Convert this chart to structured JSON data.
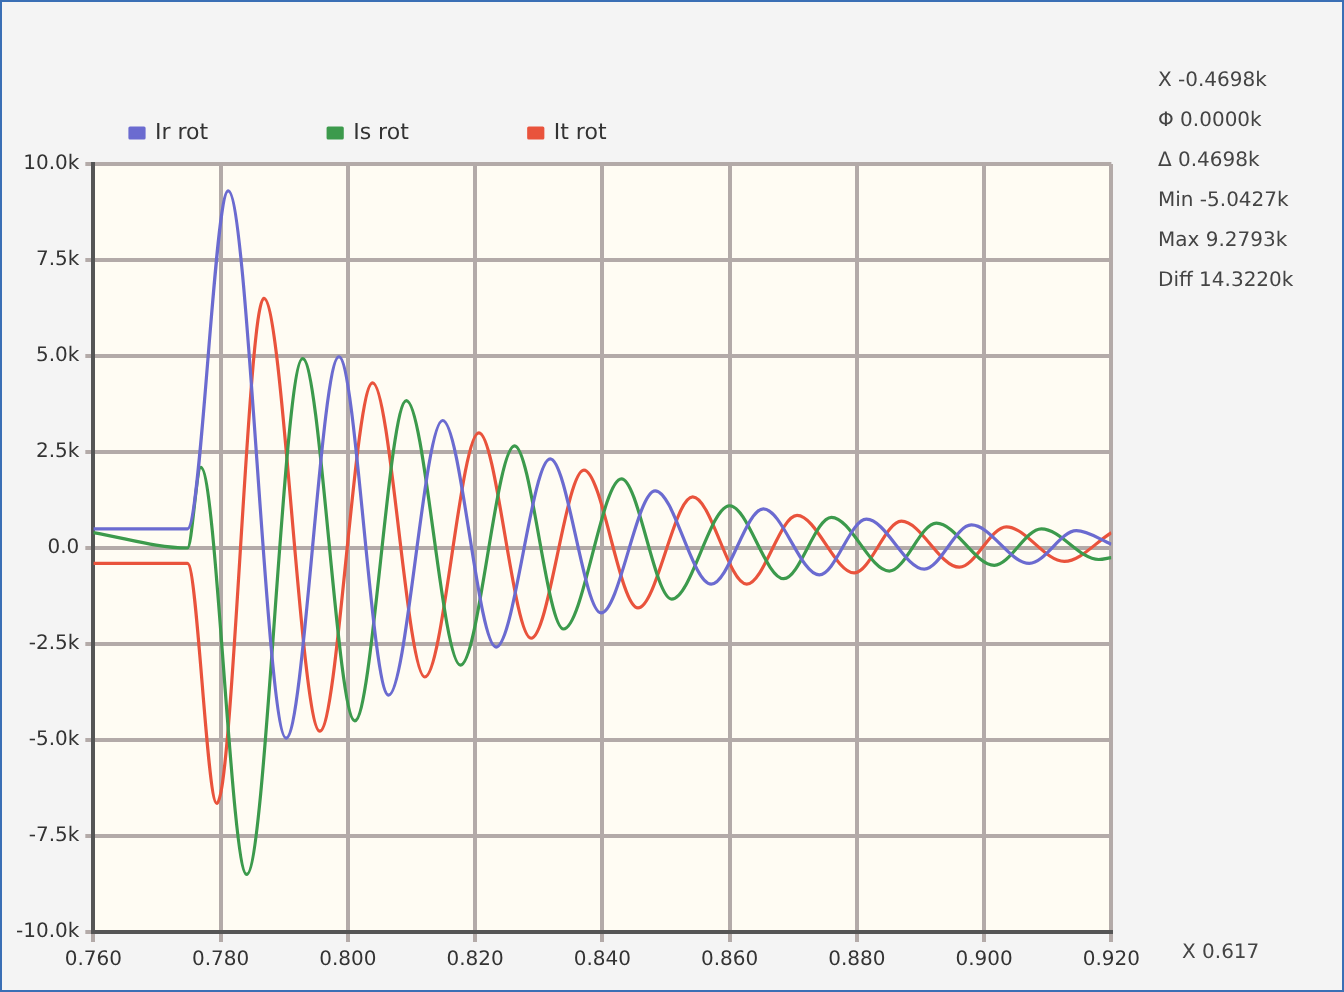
{
  "chart_data": {
    "type": "line",
    "legend": "top",
    "grid": true,
    "marker": "none",
    "line_style": "solid",
    "xlim": [
      0.76,
      0.92
    ],
    "ylim": [
      -10000,
      10000
    ],
    "xticks": [
      {
        "value": 0.76,
        "label": "0.760"
      },
      {
        "value": 0.78,
        "label": "0.780"
      },
      {
        "value": 0.8,
        "label": "0.800"
      },
      {
        "value": 0.82,
        "label": "0.820"
      },
      {
        "value": 0.84,
        "label": "0.840"
      },
      {
        "value": 0.86,
        "label": "0.860"
      },
      {
        "value": 0.88,
        "label": "0.880"
      },
      {
        "value": 0.9,
        "label": "0.900"
      },
      {
        "value": 0.92,
        "label": "0.920"
      }
    ],
    "yticks": [
      {
        "value": -10000,
        "label": "-10.0k"
      },
      {
        "value": -7500,
        "label": "-7.5k"
      },
      {
        "value": -5000,
        "label": "-5.0k"
      },
      {
        "value": -2500,
        "label": "-2.5k"
      },
      {
        "value": 0,
        "label": "0.0"
      },
      {
        "value": 2500,
        "label": "2.5k"
      },
      {
        "value": 5000,
        "label": "5.0k"
      },
      {
        "value": 7500,
        "label": "7.5k"
      },
      {
        "value": 10000,
        "label": "10.0k"
      }
    ],
    "series": [
      {
        "name": "Ir rot",
        "color": "#6b6bd0",
        "x": [
          0.76,
          0.7748,
          0.7812,
          0.7903,
          0.7986,
          0.8064,
          0.8149,
          0.8233,
          0.8318,
          0.8398,
          0.8483,
          0.8571,
          0.8653,
          0.8741,
          0.8815,
          0.8906,
          0.898,
          0.9071,
          0.9145,
          0.92
        ],
        "values": [
          500,
          500,
          9300,
          -4950,
          4980,
          -3830,
          3320,
          -2580,
          2320,
          -1690,
          1490,
          -940,
          1020,
          -700,
          750,
          -550,
          600,
          -400,
          450,
          100
        ]
      },
      {
        "name": "Is rot",
        "color": "#3c9a4c",
        "x": [
          0.76,
          0.7748,
          0.7769,
          0.7841,
          0.7929,
          0.8011,
          0.8092,
          0.8177,
          0.8262,
          0.8339,
          0.843,
          0.8509,
          0.86,
          0.8685,
          0.876,
          0.8851,
          0.8925,
          0.9016,
          0.909,
          0.918,
          0.92
        ],
        "values": [
          400,
          0,
          2100,
          -8500,
          4930,
          -4500,
          3840,
          -3050,
          2660,
          -2110,
          1800,
          -1330,
          1100,
          -800,
          800,
          -600,
          650,
          -450,
          500,
          -300,
          -250
        ]
      },
      {
        "name": "It rot",
        "color": "#e9533c",
        "x": [
          0.76,
          0.7748,
          0.7794,
          0.7868,
          0.7956,
          0.8039,
          0.8121,
          0.8206,
          0.8288,
          0.8371,
          0.8456,
          0.8542,
          0.8627,
          0.8706,
          0.8796,
          0.887,
          0.8961,
          0.9035,
          0.9126,
          0.92
        ],
        "values": [
          -400,
          -400,
          -6650,
          6500,
          -4770,
          4300,
          -3360,
          3000,
          -2350,
          2030,
          -1560,
          1330,
          -940,
          850,
          -650,
          700,
          -500,
          550,
          -350,
          400
        ]
      }
    ],
    "annotations": [
      "X -0.4698k",
      "Φ 0.0000k",
      "Δ 0.4698k",
      "Min -5.0427k",
      "Max 9.2793k",
      "Diff 14.3220k",
      "X 0.617"
    ]
  }
}
